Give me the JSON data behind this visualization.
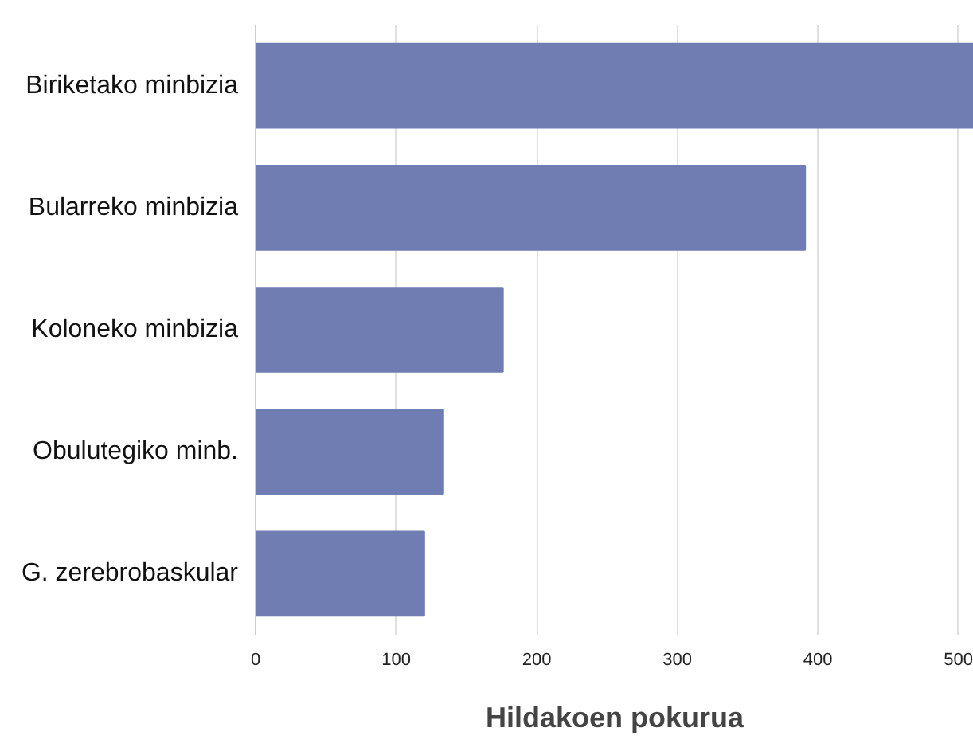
{
  "chart_data": {
    "type": "bar",
    "orientation": "horizontal",
    "xlabel": "Hildakoen pokurua",
    "categories": [
      "Biriketako minbizia",
      "Bularreko minbizia",
      "Koloneko minbizia",
      "Obulutegiko minb.",
      "G. zerebrobaskular"
    ],
    "values": [
      511,
      391,
      176,
      133,
      120
    ],
    "color": "#6f7db3",
    "xlim": [
      0,
      511
    ],
    "xticks": [
      0,
      100,
      200,
      300,
      400,
      500
    ],
    "grid": "x"
  }
}
